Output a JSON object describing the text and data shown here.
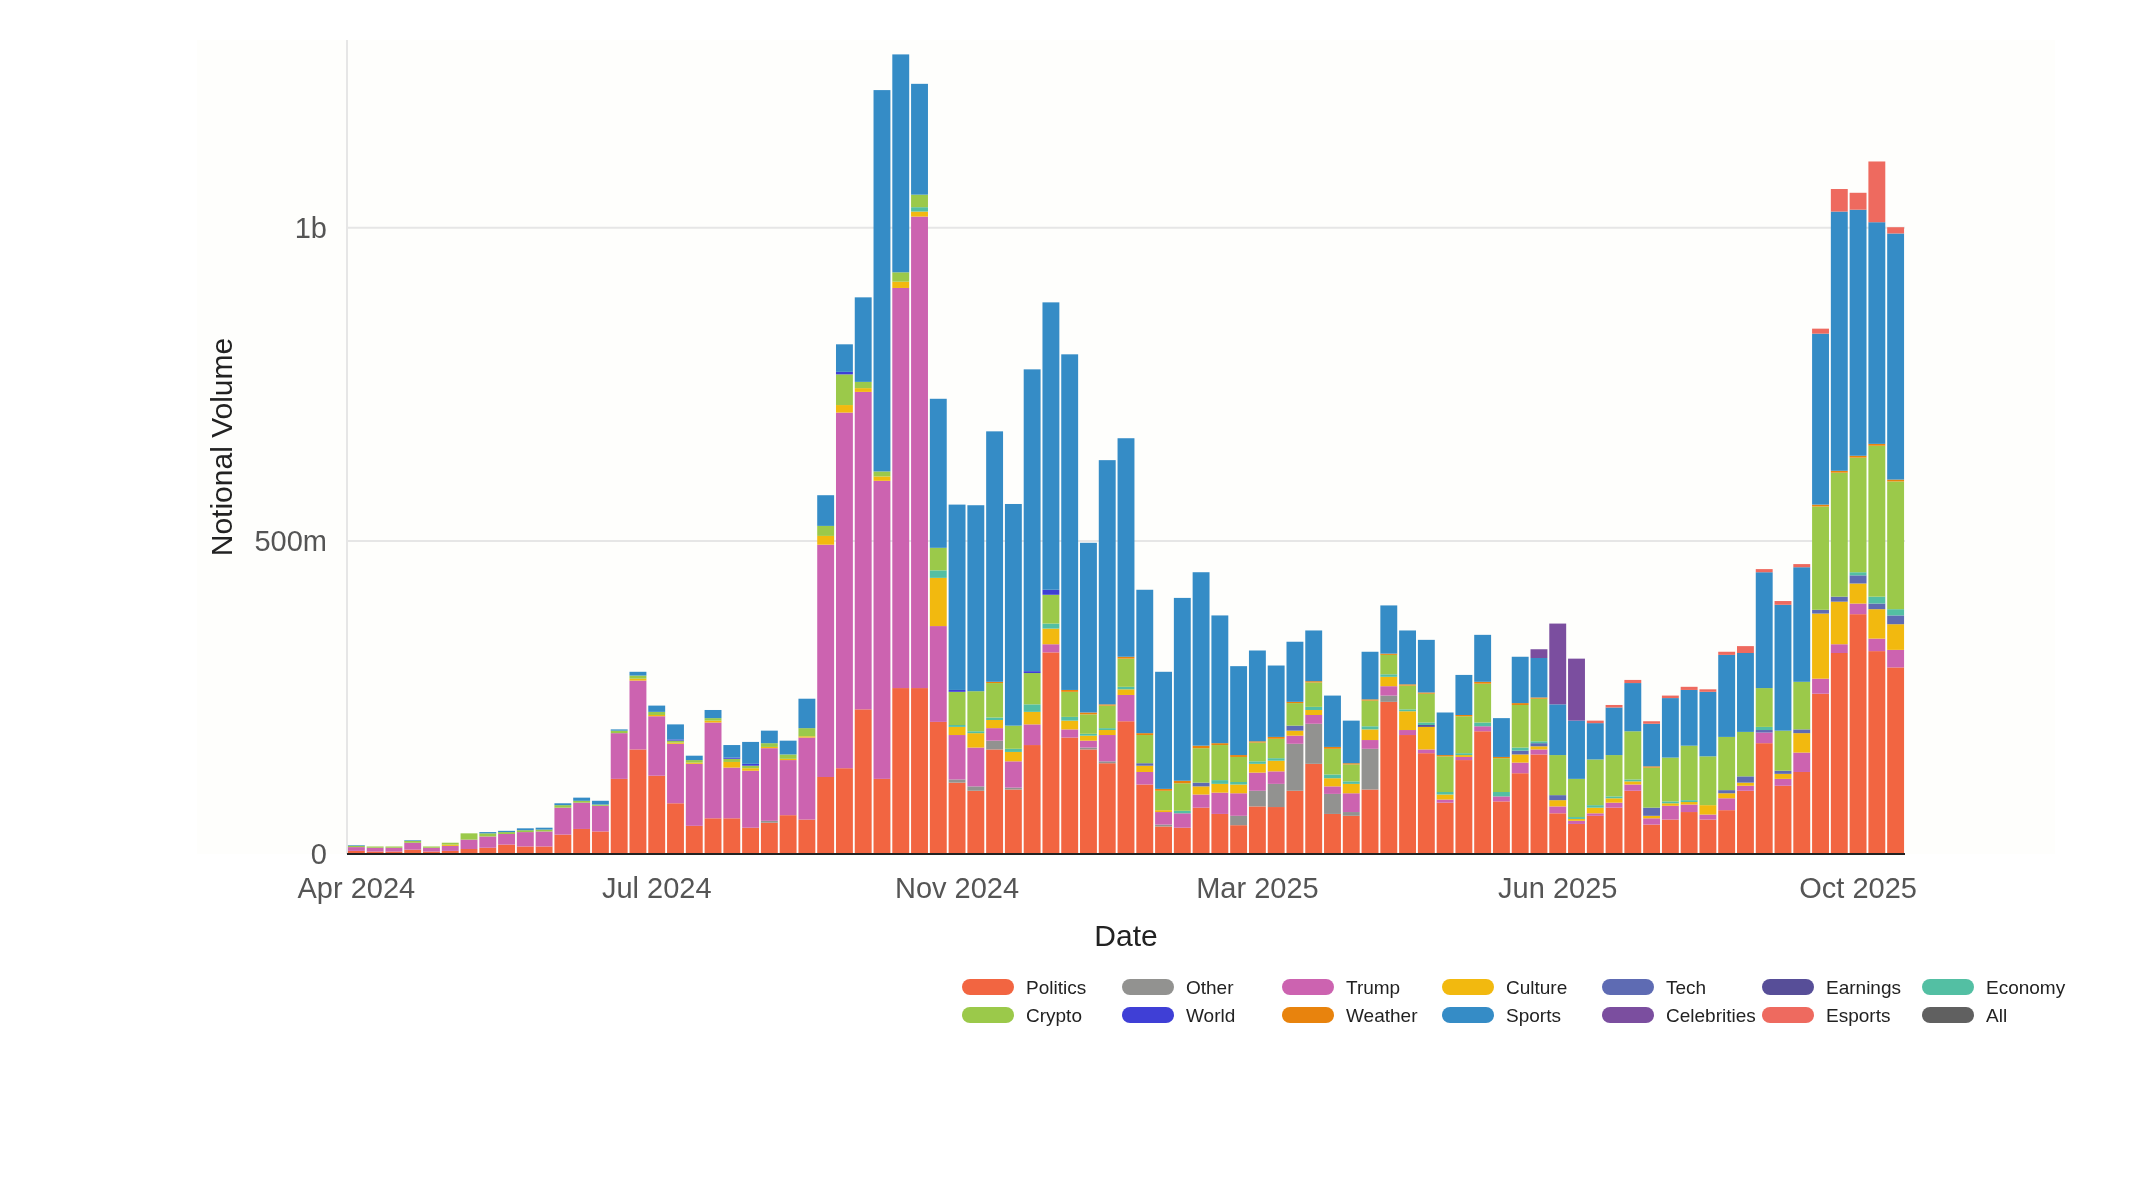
{
  "chart_data": {
    "type": "bar",
    "stacked": true,
    "xlabel": "Date",
    "ylabel": "Notional Volume",
    "categories": [
      "Apr 2024",
      null,
      null,
      null,
      null,
      null,
      null,
      null,
      null,
      null,
      null,
      null,
      null,
      null,
      null,
      null,
      "Jul 2024",
      null,
      null,
      null,
      null,
      null,
      null,
      null,
      null,
      null,
      null,
      null,
      null,
      null,
      null,
      null,
      "Nov 2024",
      null,
      null,
      null,
      null,
      null,
      null,
      null,
      null,
      null,
      null,
      null,
      null,
      null,
      null,
      null,
      "Mar 2025",
      null,
      null,
      null,
      null,
      null,
      null,
      null,
      null,
      null,
      null,
      null,
      null,
      null,
      null,
      null,
      "Jun 2025",
      null,
      null,
      null,
      null,
      null,
      null,
      null,
      null,
      null,
      null,
      null,
      null,
      null,
      null,
      null,
      "Oct 2025",
      null,
      null
    ],
    "ylim": [
      0,
      1300000000.0
    ],
    "yticks": [
      0,
      {
        "value": 500000000.0,
        "label": "500m"
      },
      {
        "value": 1000000000.0,
        "label": "1b"
      }
    ],
    "grid": "y",
    "legend": "bottom",
    "series": [
      {
        "name": "Politics",
        "color": "#f26541",
        "values": [
          5000000.0,
          4000000.0,
          4000000.0,
          7000000.0,
          4000000.0,
          5000000.0,
          8000000.0,
          10000000.0,
          15000000.0,
          12000000.0,
          12000000.0,
          31000000.0,
          40000000.0,
          36000000.0,
          120000000.0,
          167000000.0,
          125000000.0,
          81000000.0,
          45000000.0,
          57000000.0,
          57000000.0,
          42000000.0,
          50000000.0,
          62000000.0,
          55000000.0,
          123000000.0,
          137000000.0,
          231000000.0,
          120000000.0,
          265000000.0,
          265000000.0,
          211000000.0,
          114000000.0,
          101000000.0,
          167000000.0,
          103000000.0,
          174000000.0,
          322000000.0,
          186000000.0,
          167000000.0,
          145000000.0,
          212000000.0,
          111000000.0,
          44000000.0,
          42000000.0,
          74000000.0,
          64000000.0,
          46000000.0,
          76000000.0,
          75000000.0,
          101000000.0,
          144000000.0,
          64000000.0,
          61000000.0,
          103000000.0,
          243000000.0,
          190000000.0,
          161000000.0,
          82000000.0,
          150000000.0,
          196000000.0,
          84000000.0,
          129000000.0,
          159000000.0,
          65000000.0,
          48000000.0,
          61000000.0,
          74000000.0,
          101000000.0,
          47000000.0,
          55000000.0,
          67000000.0,
          55000000.0,
          70000000.0,
          101000000.0,
          177000000.0,
          109000000.0,
          131000000.0,
          256000000.0,
          321000000.0,
          383000000.0,
          324000000.0,
          298000000.0
        ]
      },
      {
        "name": "Other",
        "color": "#929290",
        "values": [
          0,
          0,
          0,
          0,
          0,
          0,
          0,
          0,
          0,
          0,
          0,
          0,
          0,
          0,
          0,
          0,
          0,
          0,
          0,
          0,
          0,
          0,
          3000000.0,
          0,
          0,
          0,
          0,
          0,
          0,
          0,
          0,
          0,
          5000000.0,
          7000000.0,
          14000000.0,
          3000000.0,
          0,
          0,
          0,
          3000000.0,
          3000000.0,
          0,
          0,
          3000000.0,
          0,
          0,
          0,
          15000000.0,
          25000000.0,
          37000000.0,
          75000000.0,
          64000000.0,
          32000000.0,
          6000000.0,
          65000000.0,
          10000000.0,
          0,
          0,
          0,
          0,
          0,
          0,
          0,
          0,
          0,
          0,
          0,
          0,
          0,
          0,
          0,
          0,
          0,
          0,
          0,
          0,
          0,
          0,
          0,
          0,
          0,
          0,
          0
        ]
      },
      {
        "name": "Trump",
        "color": "#cc63b0",
        "values": [
          6000000.0,
          6000000.0,
          6000000.0,
          11000000.0,
          6000000.0,
          8000000.0,
          15000000.0,
          18000000.0,
          17000000.0,
          23000000.0,
          24000000.0,
          43000000.0,
          42000000.0,
          41000000.0,
          73000000.0,
          110000000.0,
          95000000.0,
          95000000.0,
          99000000.0,
          153000000.0,
          81000000.0,
          91000000.0,
          116000000.0,
          88000000.0,
          131000000.0,
          371000000.0,
          568000000.0,
          507000000.0,
          476000000.0,
          639000000.0,
          753000000.0,
          153000000.0,
          71000000.0,
          62000000.0,
          20000000.0,
          42000000.0,
          33000000.0,
          13000000.0,
          13000000.0,
          11000000.0,
          42000000.0,
          42000000.0,
          20000000.0,
          20000000.0,
          23000000.0,
          21000000.0,
          34000000.0,
          36000000.0,
          29000000.0,
          20000000.0,
          13000000.0,
          14000000.0,
          12000000.0,
          30000000.0,
          14000000.0,
          15000000.0,
          8000000.0,
          6000000.0,
          5000000.0,
          5000000.0,
          8000000.0,
          8000000.0,
          17000000.0,
          8000000.0,
          11000000.0,
          5000000.0,
          4000000.0,
          8000000.0,
          10000000.0,
          10000000.0,
          22000000.0,
          12000000.0,
          8000000.0,
          19000000.0,
          8000000.0,
          17000000.0,
          11000000.0,
          31000000.0,
          24000000.0,
          14000000.0,
          17000000.0,
          20000000.0,
          28000000.0
        ]
      },
      {
        "name": "Culture",
        "color": "#f2b90f",
        "values": [
          0,
          0,
          0,
          0,
          0,
          2000000.0,
          0,
          0,
          0,
          0,
          0,
          0,
          0,
          0,
          0,
          3000000.0,
          2000000.0,
          2000000.0,
          2000000.0,
          3000000.0,
          9000000.0,
          4000000.0,
          2000000.0,
          2000000.0,
          2000000.0,
          14000000.0,
          12000000.0,
          6000000.0,
          7000000.0,
          10000000.0,
          8000000.0,
          77000000.0,
          13000000.0,
          23000000.0,
          13000000.0,
          15000000.0,
          20000000.0,
          25000000.0,
          14000000.0,
          8000000.0,
          8000000.0,
          9000000.0,
          10000000.0,
          3000000.0,
          0,
          13000000.0,
          14000000.0,
          14000000.0,
          14000000.0,
          17000000.0,
          8000000.0,
          8000000.0,
          13000000.0,
          15000000.0,
          17000000.0,
          15000000.0,
          30000000.0,
          36000000.0,
          8000000.0,
          3000000.0,
          0,
          0,
          13000000.0,
          5000000.0,
          10000000.0,
          3000000.0,
          9000000.0,
          7000000.0,
          5000000.0,
          4000000.0,
          4000000.0,
          4000000.0,
          15000000.0,
          8000000.0,
          5000000.0,
          0,
          8000000.0,
          31000000.0,
          104000000.0,
          68000000.0,
          32000000.0,
          47000000.0,
          41000000.0
        ]
      },
      {
        "name": "Tech",
        "color": "#5e6bb3",
        "values": [
          0,
          0,
          0,
          0,
          0,
          0,
          0,
          0,
          0,
          0,
          0,
          0,
          0,
          0,
          0,
          0,
          0,
          0,
          0,
          0,
          0,
          0,
          0,
          0,
          0,
          0,
          0,
          0,
          0,
          0,
          0,
          0,
          0,
          0,
          0,
          0,
          0,
          0,
          0,
          0,
          0,
          0,
          4000000.0,
          0,
          0,
          6000000.0,
          0,
          0,
          0,
          0,
          8000000.0,
          0,
          0,
          0,
          0,
          0,
          0,
          0,
          0,
          0,
          0,
          0,
          6000000.0,
          5000000.0,
          8000000.0,
          0,
          0,
          0,
          0,
          13000000.0,
          0,
          0,
          0,
          5000000.0,
          10000000.0,
          4000000.0,
          5000000.0,
          6000000.0,
          6000000.0,
          8000000.0,
          13000000.0,
          9000000.0,
          14000000.0
        ]
      },
      {
        "name": "Earnings",
        "color": "#574e98",
        "values": [
          0,
          0,
          0,
          0,
          0,
          0,
          0,
          0,
          0,
          0,
          0,
          0,
          0,
          0,
          0,
          0,
          0,
          0,
          0,
          0,
          0,
          0,
          0,
          0,
          0,
          0,
          0,
          0,
          0,
          0,
          0,
          0,
          0,
          0,
          0,
          0,
          0,
          0,
          0,
          0,
          0,
          0,
          0,
          0,
          0,
          0,
          0,
          0,
          0,
          0,
          0,
          0,
          0,
          0,
          0,
          0,
          0,
          3000000.0,
          0,
          0,
          0,
          0,
          0,
          0,
          0,
          0,
          0,
          0,
          0,
          0,
          0,
          0,
          0,
          0,
          0,
          0,
          0,
          0,
          0,
          0,
          0,
          0,
          0
        ]
      },
      {
        "name": "Economy",
        "color": "#53bfa3",
        "values": [
          0,
          0,
          0,
          0,
          0,
          0,
          0,
          0,
          0,
          0,
          0,
          0,
          0,
          0,
          0,
          0,
          0,
          0,
          0,
          0,
          0,
          0,
          0,
          0,
          0,
          0,
          0,
          0,
          0,
          0,
          7000000.0,
          12000000.0,
          3000000.0,
          3000000.0,
          4000000.0,
          5000000.0,
          12000000.0,
          8000000.0,
          6000000.0,
          3000000.0,
          3000000.0,
          4000000.0,
          0,
          0,
          4000000.0,
          0,
          6000000.0,
          4000000.0,
          4000000.0,
          4000000.0,
          0,
          5000000.0,
          6000000.0,
          4000000.0,
          5000000.0,
          4000000.0,
          3000000.0,
          4000000.0,
          4000000.0,
          3000000.0,
          6000000.0,
          7000000.0,
          5000000.0,
          3000000.0,
          0,
          3000000.0,
          4000000.0,
          3000000.0,
          3000000.0,
          0,
          3000000.0,
          3000000.0,
          0,
          0,
          0,
          5000000.0,
          0,
          0,
          0,
          0,
          5000000.0,
          11000000.0,
          10000000.0
        ]
      },
      {
        "name": "Crypto",
        "color": "#9bc94a",
        "values": [
          2000000.0,
          2000000.0,
          2000000.0,
          3000000.0,
          2000000.0,
          3000000.0,
          10000000.0,
          5000000.0,
          3000000.0,
          3000000.0,
          3000000.0,
          4000000.0,
          3000000.0,
          2000000.0,
          4000000.0,
          5000000.0,
          5000000.0,
          3000000.0,
          4000000.0,
          4000000.0,
          5000000.0,
          4000000.0,
          6000000.0,
          7000000.0,
          13000000.0,
          16000000.0,
          49000000.0,
          10000000.0,
          8000000.0,
          15000000.0,
          20000000.0,
          36000000.0,
          53000000.0,
          64000000.0,
          55000000.0,
          37000000.0,
          50000000.0,
          46000000.0,
          40000000.0,
          31000000.0,
          36000000.0,
          45000000.0,
          45000000.0,
          31000000.0,
          44000000.0,
          55000000.0,
          56000000.0,
          40000000.0,
          30000000.0,
          31000000.0,
          36000000.0,
          39000000.0,
          41000000.0,
          27000000.0,
          41000000.0,
          31000000.0,
          38000000.0,
          46000000.0,
          57000000.0,
          59000000.0,
          62000000.0,
          54000000.0,
          68000000.0,
          68000000.0,
          64000000.0,
          61000000.0,
          73000000.0,
          66000000.0,
          77000000.0,
          64000000.0,
          70000000.0,
          87000000.0,
          78000000.0,
          85000000.0,
          71000000.0,
          62000000.0,
          64000000.0,
          76000000.0,
          165000000.0,
          198000000.0,
          183000000.0,
          241000000.0,
          204000000.0
        ]
      },
      {
        "name": "World",
        "color": "#3f3fd6",
        "values": [
          0,
          0,
          0,
          0,
          0,
          0,
          0,
          0,
          0,
          0,
          0,
          0,
          0,
          0,
          0,
          0,
          0,
          2000000.0,
          0,
          0,
          2000000.0,
          3000000.0,
          null,
          0,
          0,
          0,
          4000000.0,
          0,
          0,
          0,
          0,
          0,
          3000000.0,
          0,
          0,
          0,
          3000000.0,
          8000000.0,
          0,
          0,
          0,
          0,
          0,
          0,
          0,
          0,
          0,
          0,
          0,
          0,
          0,
          0,
          0,
          0,
          0,
          0,
          0,
          0,
          0,
          0,
          0,
          0,
          0,
          0,
          0,
          0,
          0,
          0,
          0,
          0,
          0,
          0,
          0,
          0,
          0,
          0,
          0,
          0,
          0,
          0,
          0,
          0,
          0
        ]
      },
      {
        "name": "Weather",
        "color": "#e8830d",
        "values": [
          0,
          0,
          0,
          0,
          0,
          0,
          0,
          0,
          0,
          0,
          0,
          0,
          0,
          0,
          0,
          0,
          0,
          0,
          0,
          0,
          0,
          0,
          0,
          0,
          0,
          0,
          0,
          0,
          0,
          0,
          0,
          0,
          0,
          0,
          2000000.0,
          0,
          0,
          0,
          3000000.0,
          3000000.0,
          2000000.0,
          3000000.0,
          3000000.0,
          3000000.0,
          4000000.0,
          4000000.0,
          3000000.0,
          3000000.0,
          2000000.0,
          3000000.0,
          2000000.0,
          2000000.0,
          3000000.0,
          2000000.0,
          2000000.0,
          2000000.0,
          2000000.0,
          2000000.0,
          2000000.0,
          2000000.0,
          3000000.0,
          2000000.0,
          3000000.0,
          2000000.0,
          0,
          0,
          0,
          0,
          0,
          2000000.0,
          0,
          0,
          0,
          0,
          0,
          0,
          0,
          0,
          3000000.0,
          3000000.0,
          3000000.0,
          3000000.0,
          3000000.0
        ]
      },
      {
        "name": "Sports",
        "color": "#358cc6",
        "values": [
          1000000.0,
          0,
          0,
          1000000.0,
          0,
          0,
          0,
          2000000.0,
          2000000.0,
          3000000.0,
          3000000.0,
          3000000.0,
          5000000.0,
          6000000.0,
          2000000.0,
          6000000.0,
          10000000.0,
          24000000.0,
          7000000.0,
          13000000.0,
          20000000.0,
          35000000.0,
          20000000.0,
          22000000.0,
          47000000.0,
          49000000.0,
          44000000.0,
          135000000.0,
          609000000.0,
          348000000.0,
          177000000.0,
          238000000.0,
          296000000.0,
          297000000.0,
          400000000.0,
          354000000.0,
          482000000.0,
          459000000.0,
          536000000.0,
          271000000.0,
          390000000.0,
          349000000.0,
          229000000.0,
          187000000.0,
          292000000.0,
          277000000.0,
          204000000.0,
          142000000.0,
          145000000.0,
          114000000.0,
          96000000.0,
          81000000.0,
          82000000.0,
          68000000.0,
          76000000.0,
          77000000.0,
          86000000.0,
          84000000.0,
          68000000.0,
          64000000.0,
          75000000.0,
          62000000.0,
          74000000.0,
          63000000.0,
          81000000.0,
          93000000.0,
          58000000.0,
          76000000.0,
          77000000.0,
          68000000.0,
          95000000.0,
          89000000.0,
          103000000.0,
          131000000.0,
          126000000.0,
          185000000.0,
          201000000.0,
          183000000.0,
          273000000.0,
          414000000.0,
          393000000.0,
          354000000.0,
          393000000.0
        ]
      },
      {
        "name": "Celebrities",
        "color": "#7b4e9f",
        "values": [
          0,
          0,
          0,
          0,
          0,
          0,
          0,
          0,
          0,
          0,
          0,
          0,
          0,
          0,
          0,
          0,
          0,
          0,
          0,
          0,
          0,
          0,
          0,
          0,
          0,
          0,
          0,
          0,
          0,
          0,
          0,
          0,
          0,
          0,
          0,
          0,
          0,
          0,
          0,
          0,
          0,
          0,
          0,
          0,
          0,
          0,
          0,
          0,
          0,
          0,
          0,
          0,
          0,
          0,
          0,
          0,
          0,
          0,
          0,
          0,
          0,
          0,
          0,
          14000000.0,
          129000000.0,
          99000000.0,
          0,
          0,
          0,
          0,
          0,
          0,
          0,
          0,
          0,
          0,
          0,
          0,
          0,
          0,
          0,
          0,
          0
        ]
      },
      {
        "name": "Esports",
        "color": "#ee6a5f",
        "values": [
          0,
          0,
          0,
          0,
          0,
          0,
          0,
          0,
          0,
          0,
          0,
          0,
          0,
          0,
          0,
          0,
          0,
          0,
          0,
          0,
          0,
          0,
          0,
          0,
          0,
          0,
          0,
          0,
          0,
          0,
          0,
          0,
          0,
          0,
          0,
          0,
          0,
          0,
          0,
          0,
          0,
          0,
          0,
          0,
          0,
          0,
          0,
          0,
          0,
          0,
          0,
          0,
          0,
          0,
          0,
          0,
          0,
          0,
          0,
          0,
          0,
          0,
          0,
          0,
          0,
          0,
          4000000.0,
          4000000.0,
          5000000.0,
          4000000.0,
          4000000.0,
          5000000.0,
          4000000.0,
          5000000.0,
          11000000.0,
          5000000.0,
          6000000.0,
          5000000.0,
          8000000.0,
          36000000.0,
          27000000.0,
          97000000.0,
          10000000.0
        ]
      },
      {
        "name": "All",
        "color": "#606060",
        "values": [
          0,
          0,
          0,
          0,
          0,
          0,
          0,
          0,
          0,
          0,
          0,
          0,
          0,
          0,
          0,
          0,
          0,
          0,
          0,
          0,
          0,
          0,
          0,
          0,
          0,
          0,
          0,
          0,
          0,
          0,
          0,
          0,
          0,
          0,
          0,
          0,
          0,
          0,
          0,
          0,
          0,
          0,
          0,
          0,
          0,
          0,
          0,
          0,
          0,
          0,
          0,
          0,
          0,
          0,
          0,
          0,
          0,
          0,
          0,
          0,
          0,
          0,
          0,
          0,
          0,
          0,
          0,
          0,
          0,
          0,
          0,
          0,
          0,
          0,
          0,
          0,
          0,
          0,
          0,
          0,
          0,
          0,
          0
        ]
      }
    ]
  }
}
